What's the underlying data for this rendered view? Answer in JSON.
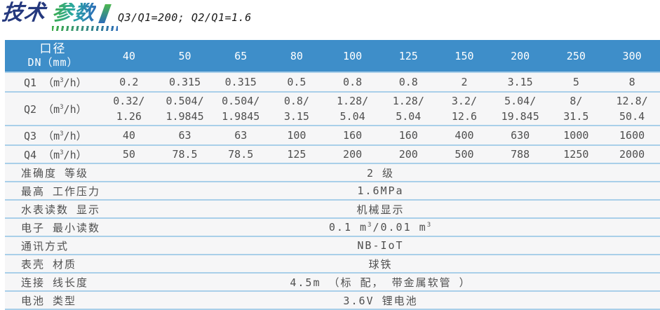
{
  "header": {
    "title_part1": "技术",
    "title_part2": "参数",
    "subtitle": "Q3/Q1=200; Q2/Q1=1.6"
  },
  "colors": {
    "table_header_bg": "#3e8ec9",
    "row_bg": "#f6f6f7",
    "divider": "#a9cfe9",
    "title_navy": "#24387d",
    "title_gradient_start": "#3fae49",
    "title_gradient_end": "#2b6cb8",
    "body_text": "#4f4f4f"
  },
  "table": {
    "corner": {
      "line1": "口径",
      "line2": "DN（mm）"
    },
    "dn_columns": [
      "40",
      "50",
      "65",
      "80",
      "100",
      "125",
      "150",
      "200",
      "250",
      "300"
    ],
    "flow_rows": [
      {
        "name": "Q1",
        "unit_pre": " （m",
        "unit_sup": "3",
        "unit_post": "/h）",
        "values": [
          "0.2",
          "0.315",
          "0.315",
          "0.5",
          "0.8",
          "0.8",
          "2",
          "3.15",
          "5",
          "8"
        ]
      },
      {
        "name": "Q2",
        "unit_pre": " （m",
        "unit_sup": "3",
        "unit_post": "/h）",
        "values_top": [
          "0.32/",
          "0.504/",
          "0.504/",
          "0.8/",
          "1.28/",
          "1.28/",
          "3.2/",
          "5.04/",
          "8/",
          "12.8/"
        ],
        "values_bottom": [
          "1.26",
          "1.9845",
          "1.9845",
          "3.15",
          "5.04",
          "5.04",
          "12.6",
          "19.845",
          "31.5",
          "50.4"
        ]
      },
      {
        "name": "Q3",
        "unit_pre": " （m",
        "unit_sup": "3",
        "unit_post": "/h）",
        "values": [
          "40",
          "63",
          "63",
          "100",
          "160",
          "160",
          "400",
          "630",
          "1000",
          "1600"
        ]
      },
      {
        "name": "Q4",
        "unit_pre": " （m",
        "unit_sup": "3",
        "unit_post": "/h）",
        "values": [
          "50",
          "78.5",
          "78.5",
          "125",
          "200",
          "200",
          "500",
          "788",
          "1250",
          "2000"
        ]
      }
    ],
    "spec_rows": [
      {
        "label": "准确度 等级",
        "value": "2 级"
      },
      {
        "label": "最高 工作压力",
        "value": "1.6MPa"
      },
      {
        "label": "水表读数 显示",
        "value": "机械显示"
      },
      {
        "label": "电子 最小读数",
        "value_pre": "0.1 m",
        "value_sup1": "3",
        "value_mid": "/0.01 m",
        "value_sup2": "3"
      },
      {
        "label": "通讯方式",
        "value": "NB-IoT"
      },
      {
        "label": "表壳 材质",
        "value": "球铁"
      },
      {
        "label": "连接 线长度",
        "value": "4.5m （标 配， 带金属软管 ）"
      },
      {
        "label": "电池 类型",
        "value": "3.6V 锂电池"
      }
    ]
  }
}
